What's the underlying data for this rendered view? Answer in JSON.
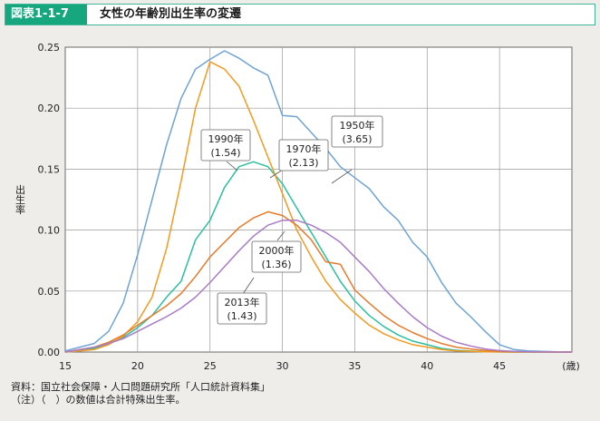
{
  "header": {
    "badge": "図表1-1-7",
    "title": "女性の年齢別出生率の変遷"
  },
  "notes": {
    "source": "資料：国立社会保障・人口問題研究所「人口統計資料集」",
    "note": "（注）（　）の数値は合計特殊出生率。"
  },
  "chart_data": {
    "type": "line",
    "ylabel": "出生率",
    "x_unit_label": "(歳)",
    "xlim": [
      15,
      50
    ],
    "ylim": [
      0,
      0.25
    ],
    "x_ticks": [
      15,
      20,
      25,
      30,
      35,
      40,
      45
    ],
    "y_ticks": [
      "0.00",
      "0.05",
      "0.10",
      "0.15",
      "0.20",
      "0.25"
    ],
    "grid": true,
    "series": [
      {
        "name": "1950年",
        "tfr": "(3.65)",
        "color": "#6fa3d4",
        "x": [
          15,
          16,
          17,
          18,
          19,
          20,
          21,
          22,
          23,
          24,
          25,
          26,
          27,
          28,
          29,
          30,
          31,
          32,
          33,
          34,
          35,
          36,
          37,
          38,
          39,
          40,
          41,
          42,
          43,
          44,
          45,
          46,
          47,
          48,
          49,
          50
        ],
        "values": [
          0.001,
          0.004,
          0.007,
          0.017,
          0.04,
          0.08,
          0.125,
          0.17,
          0.208,
          0.232,
          0.24,
          0.247,
          0.241,
          0.233,
          0.227,
          0.194,
          0.193,
          0.18,
          0.167,
          0.152,
          0.143,
          0.134,
          0.119,
          0.108,
          0.09,
          0.078,
          0.057,
          0.04,
          0.029,
          0.017,
          0.006,
          0.002,
          0.001,
          0.0005,
          0.0002,
          0.0
        ]
      },
      {
        "name": "1970年",
        "tfr": "(2.13)",
        "color": "#2bbf9f",
        "x": [
          15,
          16,
          17,
          18,
          19,
          20,
          21,
          22,
          23,
          24,
          25,
          26,
          27,
          28,
          29,
          30,
          31,
          32,
          33,
          34,
          35,
          36,
          37,
          38,
          39,
          40,
          41,
          42,
          43,
          44,
          45,
          46,
          47,
          48,
          49,
          50
        ],
        "values": [
          0.0,
          0.001,
          0.003,
          0.007,
          0.012,
          0.02,
          0.03,
          0.045,
          0.058,
          0.092,
          0.108,
          0.135,
          0.152,
          0.156,
          0.152,
          0.138,
          0.118,
          0.098,
          0.078,
          0.058,
          0.042,
          0.03,
          0.021,
          0.014,
          0.009,
          0.006,
          0.003,
          0.0015,
          0.0008,
          0.0003,
          0.0001,
          0.0,
          0.0,
          0.0,
          0.0,
          0.0
        ]
      },
      {
        "name": "1990年",
        "tfr": "(1.54)",
        "color": "#f39a1f",
        "x": [
          15,
          16,
          17,
          18,
          19,
          20,
          21,
          22,
          23,
          24,
          25,
          26,
          27,
          28,
          29,
          30,
          31,
          32,
          33,
          34,
          35,
          36,
          37,
          38,
          39,
          40,
          41,
          42,
          43,
          44,
          45,
          46,
          47,
          48,
          49,
          50
        ],
        "values": [
          0.0,
          0.001,
          0.002,
          0.006,
          0.013,
          0.025,
          0.045,
          0.085,
          0.14,
          0.2,
          0.238,
          0.232,
          0.218,
          0.19,
          0.16,
          0.13,
          0.1,
          0.078,
          0.058,
          0.043,
          0.032,
          0.022,
          0.015,
          0.01,
          0.006,
          0.004,
          0.002,
          0.001,
          0.0005,
          0.0002,
          0.0001,
          0.0,
          0.0,
          0.0,
          0.0,
          0.0
        ]
      },
      {
        "name": "2000年",
        "tfr": "(1.36)",
        "color": "#e87a2a",
        "x": [
          15,
          16,
          17,
          18,
          19,
          20,
          21,
          22,
          23,
          24,
          25,
          26,
          27,
          28,
          29,
          30,
          31,
          32,
          33,
          34,
          35,
          36,
          37,
          38,
          39,
          40,
          41,
          42,
          43,
          44,
          45,
          46,
          47,
          48,
          49,
          50
        ],
        "values": [
          0.0,
          0.002,
          0.004,
          0.008,
          0.014,
          0.022,
          0.03,
          0.038,
          0.048,
          0.062,
          0.078,
          0.09,
          0.102,
          0.11,
          0.115,
          0.112,
          0.104,
          0.092,
          0.074,
          0.072,
          0.051,
          0.04,
          0.03,
          0.022,
          0.016,
          0.011,
          0.007,
          0.004,
          0.0025,
          0.0013,
          0.0006,
          0.0002,
          0.0001,
          0.0,
          0.0,
          0.0
        ]
      },
      {
        "name": "2013年",
        "tfr": "(1.43)",
        "color": "#a87bc7",
        "x": [
          15,
          16,
          17,
          18,
          19,
          20,
          21,
          22,
          23,
          24,
          25,
          26,
          27,
          28,
          29,
          30,
          31,
          32,
          33,
          34,
          35,
          36,
          37,
          38,
          39,
          40,
          41,
          42,
          43,
          44,
          45,
          46,
          47,
          48,
          49,
          50
        ],
        "values": [
          0.0,
          0.002,
          0.004,
          0.007,
          0.011,
          0.017,
          0.023,
          0.029,
          0.036,
          0.045,
          0.057,
          0.07,
          0.083,
          0.095,
          0.104,
          0.108,
          0.108,
          0.104,
          0.098,
          0.09,
          0.078,
          0.066,
          0.052,
          0.04,
          0.029,
          0.02,
          0.013,
          0.008,
          0.005,
          0.0025,
          0.0012,
          0.0005,
          0.0002,
          0.0001,
          0.0,
          0.0
        ]
      }
    ]
  }
}
